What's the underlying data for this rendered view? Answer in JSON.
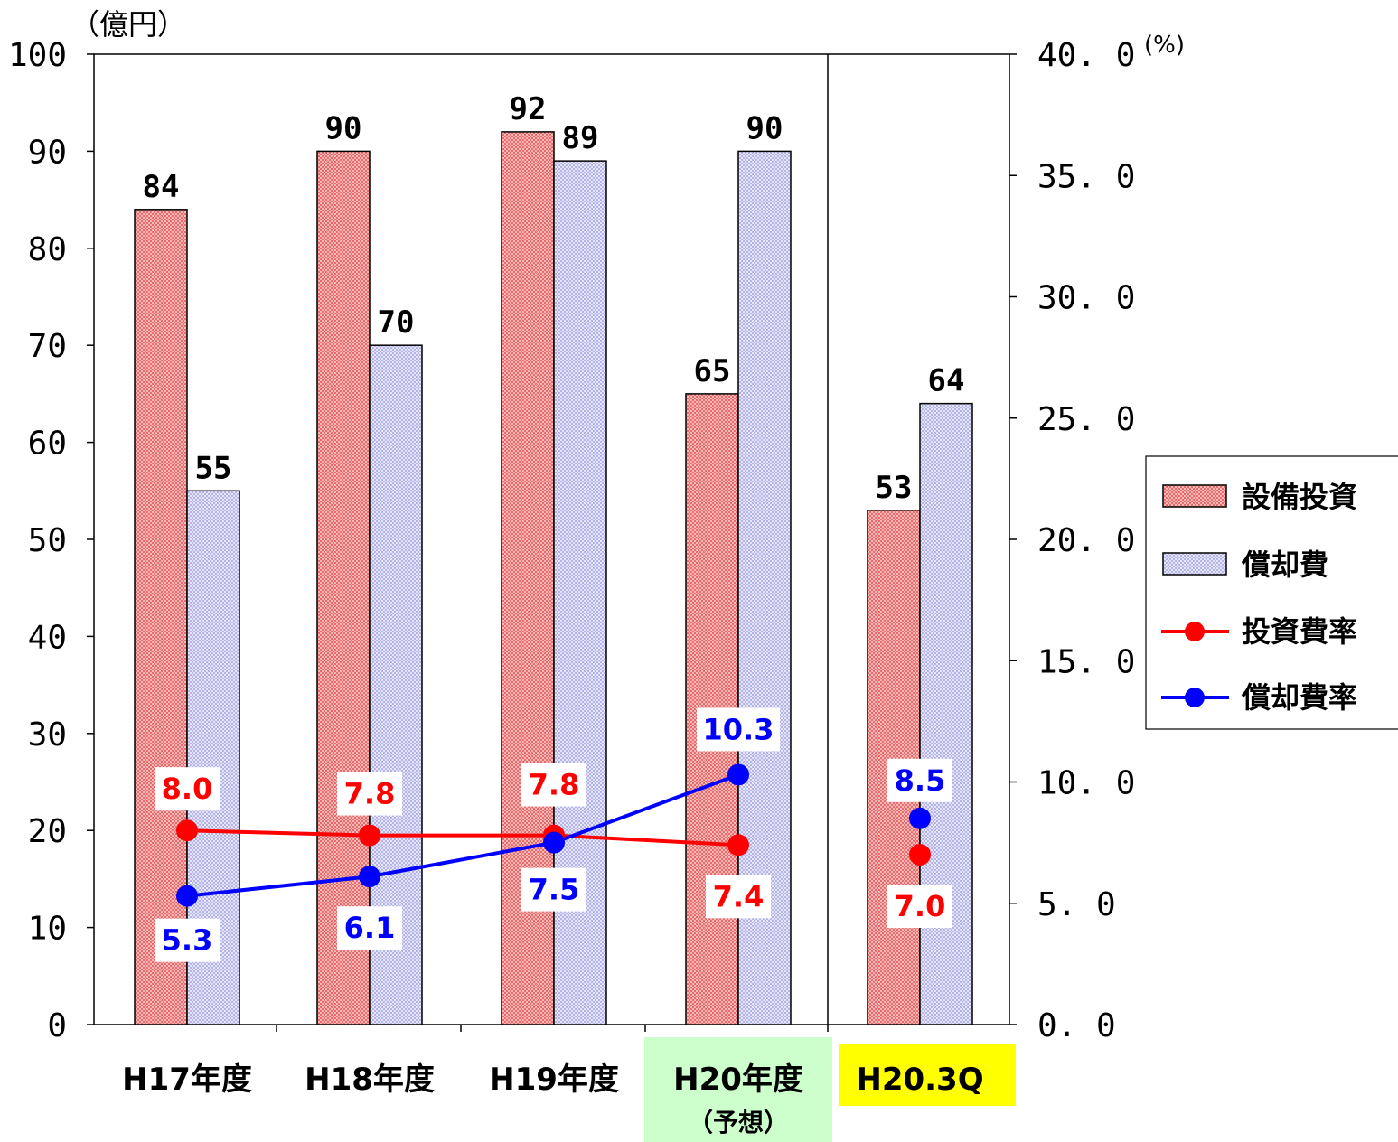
{
  "colors": {
    "invest_bar": "#f08080",
    "depr_bar": "#c8c8f0",
    "invest_line": "#ff0000",
    "depr_line": "#0000ff",
    "forecast_bg": "#ccffcc",
    "q3_bg": "#ffff00"
  },
  "chart_data": {
    "type": "bar",
    "left_unit": "（億円）",
    "right_unit": "(%)",
    "categories": [
      "H17年度",
      "H18年度",
      "H19年度",
      "H20年度",
      "H20.3Q"
    ],
    "category_sublabels": [
      "",
      "",
      "",
      "（予想）",
      ""
    ],
    "ylim_left": [
      0,
      100
    ],
    "yticks_left": [
      "0",
      "10",
      "20",
      "30",
      "40",
      "50",
      "60",
      "70",
      "80",
      "90",
      "100"
    ],
    "ylim_right": [
      0,
      40
    ],
    "yticks_right": [
      "0. 0",
      "5. 0",
      "10. 0",
      "15. 0",
      "20. 0",
      "25. 0",
      "30. 0",
      "35. 0",
      "40. 0"
    ],
    "series": [
      {
        "name": "設備投資",
        "kind": "bar",
        "axis": "left",
        "color": "#f08080",
        "values": [
          84,
          90,
          92,
          65,
          53
        ],
        "labels": [
          "84",
          "90",
          "92",
          "65",
          "53"
        ]
      },
      {
        "name": "償却費",
        "kind": "bar",
        "axis": "left",
        "color": "#c8c8f0",
        "values": [
          55,
          70,
          89,
          90,
          64
        ],
        "labels": [
          "55",
          "70",
          "89",
          "90",
          "64"
        ]
      },
      {
        "name": "投資費率",
        "kind": "line",
        "axis": "right",
        "color": "#ff0000",
        "values": [
          8.0,
          7.8,
          7.8,
          7.4,
          7.0
        ],
        "labels": [
          "8.0",
          "7.8",
          "7.8",
          "7.4",
          "7.0"
        ]
      },
      {
        "name": "償却費率",
        "kind": "line",
        "axis": "right",
        "color": "#0000ff",
        "values": [
          5.3,
          6.1,
          7.5,
          10.3,
          8.5
        ],
        "labels": [
          "5.3",
          "6.1",
          "7.5",
          "10.3",
          "8.5"
        ]
      }
    ],
    "legend_position": "right",
    "grid": false
  }
}
